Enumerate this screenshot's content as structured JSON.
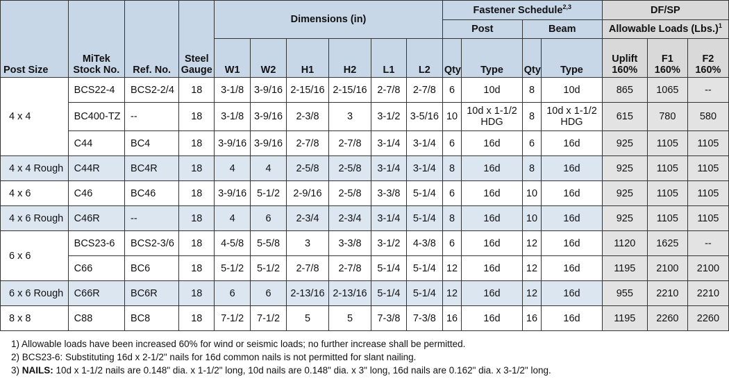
{
  "header": {
    "post_size": "Post Size",
    "stock_no": [
      "MiTek",
      "Stock No."
    ],
    "ref_no": "Ref. No.",
    "steel_gauge": [
      "Steel",
      "Gauge"
    ],
    "dimensions": "Dimensions (in)",
    "dim_cols": [
      "W1",
      "W2",
      "H1",
      "H2",
      "L1",
      "L2"
    ],
    "fastener_schedule": "Fastener Schedule",
    "fastener_sup": "2,3",
    "post": "Post",
    "beam": "Beam",
    "qty": "Qty",
    "type": "Type",
    "loads_title": "DF/SP",
    "loads_sub": "Allowable Loads (Lbs.)",
    "loads_sup": "1",
    "load_cols": [
      [
        "Uplift",
        "160%"
      ],
      [
        "F1",
        "160%"
      ],
      [
        "F2",
        "160%"
      ]
    ]
  },
  "groups": [
    {
      "post_size": "4 x 4",
      "rough": false,
      "rows": [
        {
          "stock": "BCS22-4",
          "ref": "BCS2-2/4",
          "gauge": "18",
          "w1": "3-1/8",
          "w2": "3-9/16",
          "h1": "2-15/16",
          "h2": "2-15/16",
          "l1": "2-7/8",
          "l2": "2-7/8",
          "post_qty": "6",
          "post_type": [
            "10d"
          ],
          "beam_qty": "8",
          "beam_type": [
            "10d"
          ],
          "uplift": "865",
          "f1": "1065",
          "f2": "--"
        },
        {
          "stock": "BC400-TZ",
          "ref": "--",
          "gauge": "18",
          "w1": "3-1/8",
          "w2": "3-9/16",
          "h1": "2-3/8",
          "h2": "3",
          "l1": "3-1/2",
          "l2": "3-5/16",
          "post_qty": "10",
          "post_type": [
            "10d x 1-1/2",
            "HDG"
          ],
          "beam_qty": "8",
          "beam_type": [
            "10d x 1-1/2",
            "HDG"
          ],
          "uplift": "615",
          "f1": "780",
          "f2": "580"
        },
        {
          "stock": "C44",
          "ref": "BC4",
          "gauge": "18",
          "w1": "3-9/16",
          "w2": "3-9/16",
          "h1": "2-7/8",
          "h2": "2-7/8",
          "l1": "3-1/4",
          "l2": "3-1/4",
          "post_qty": "6",
          "post_type": [
            "16d"
          ],
          "beam_qty": "6",
          "beam_type": [
            "16d"
          ],
          "uplift": "925",
          "f1": "1105",
          "f2": "1105"
        }
      ]
    },
    {
      "post_size": "4 x 4 Rough",
      "rough": true,
      "rows": [
        {
          "stock": "C44R",
          "ref": "BC4R",
          "gauge": "18",
          "w1": "4",
          "w2": "4",
          "h1": "2-5/8",
          "h2": "2-5/8",
          "l1": "3-1/4",
          "l2": "3-1/4",
          "post_qty": "8",
          "post_type": [
            "16d"
          ],
          "beam_qty": "8",
          "beam_type": [
            "16d"
          ],
          "uplift": "925",
          "f1": "1105",
          "f2": "1105"
        }
      ]
    },
    {
      "post_size": "4 x 6",
      "rough": false,
      "rows": [
        {
          "stock": "C46",
          "ref": "BC46",
          "gauge": "18",
          "w1": "3-9/16",
          "w2": "5-1/2",
          "h1": "2-9/16",
          "h2": "2-5/8",
          "l1": "3-3/8",
          "l2": "5-1/4",
          "post_qty": "6",
          "post_type": [
            "16d"
          ],
          "beam_qty": "10",
          "beam_type": [
            "16d"
          ],
          "uplift": "925",
          "f1": "1105",
          "f2": "1105"
        }
      ]
    },
    {
      "post_size": "4 x 6 Rough",
      "rough": true,
      "rows": [
        {
          "stock": "C46R",
          "ref": "--",
          "gauge": "18",
          "w1": "4",
          "w2": "6",
          "h1": "2-3/4",
          "h2": "2-3/4",
          "l1": "3-1/4",
          "l2": "5-1/4",
          "post_qty": "8",
          "post_type": [
            "16d"
          ],
          "beam_qty": "10",
          "beam_type": [
            "16d"
          ],
          "uplift": "925",
          "f1": "1105",
          "f2": "1105"
        }
      ]
    },
    {
      "post_size": "6 x 6",
      "rough": false,
      "rows": [
        {
          "stock": "BCS23-6",
          "ref": "BCS2-3/6",
          "gauge": "18",
          "w1": "4-5/8",
          "w2": "5-5/8",
          "h1": "3",
          "h2": "3-3/8",
          "l1": "3-1/2",
          "l2": "4-3/8",
          "post_qty": "6",
          "post_type": [
            "16d"
          ],
          "beam_qty": "12",
          "beam_type": [
            "16d"
          ],
          "uplift": "1120",
          "f1": "1625",
          "f2": "--"
        },
        {
          "stock": "C66",
          "ref": "BC6",
          "gauge": "18",
          "w1": "5-1/2",
          "w2": "5-1/2",
          "h1": "2-7/8",
          "h2": "2-7/8",
          "l1": "5-1/4",
          "l2": "5-1/4",
          "post_qty": "12",
          "post_type": [
            "16d"
          ],
          "beam_qty": "12",
          "beam_type": [
            "16d"
          ],
          "uplift": "1195",
          "f1": "2100",
          "f2": "2100"
        }
      ]
    },
    {
      "post_size": "6 x 6 Rough",
      "rough": true,
      "rows": [
        {
          "stock": "C66R",
          "ref": "BC6R",
          "gauge": "18",
          "w1": "6",
          "w2": "6",
          "h1": "2-13/16",
          "h2": "2-13/16",
          "l1": "5-1/4",
          "l2": "5-1/4",
          "post_qty": "12",
          "post_type": [
            "16d"
          ],
          "beam_qty": "12",
          "beam_type": [
            "16d"
          ],
          "uplift": "955",
          "f1": "2210",
          "f2": "2210"
        }
      ]
    },
    {
      "post_size": "8 x 8",
      "rough": false,
      "rows": [
        {
          "stock": "C88",
          "ref": "BC8",
          "gauge": "18",
          "w1": "7-1/2",
          "w2": "7-1/2",
          "h1": "5",
          "h2": "5",
          "l1": "7-3/8",
          "l2": "7-3/8",
          "post_qty": "16",
          "post_type": [
            "16d"
          ],
          "beam_qty": "16",
          "beam_type": [
            "16d"
          ],
          "uplift": "1195",
          "f1": "2260",
          "f2": "2260"
        }
      ]
    }
  ],
  "notes": [
    {
      "prefix": "1) ",
      "bold": "",
      "text": "Allowable loads have been increased 60% for wind or seismic loads; no further increase shall be permitted."
    },
    {
      "prefix": "2) ",
      "bold": "",
      "text": "BCS23-6: Substituting 16d x 2-1/2\" nails for 16d common nails is not permitted for slant nailing."
    },
    {
      "prefix": "3) ",
      "bold": "NAILS:",
      "text": " 10d x 1-1/2 nails are 0.148\" dia. x 1-1/2\" long, 10d nails are 0.148\" dia. x 3\" long, 16d nails are 0.162\" dia. x 3-1/2\" long."
    }
  ]
}
